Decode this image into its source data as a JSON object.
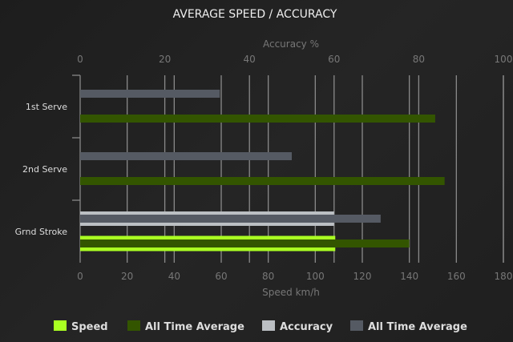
{
  "chart_data": {
    "type": "bar",
    "orientation": "horizontal",
    "title": "AVERAGE SPEED / ACCURACY",
    "categories": [
      "1st Serve",
      "2nd Serve",
      "Grnd Stroke"
    ],
    "x_axis_bottom": {
      "label": "Speed km/h",
      "range": [
        0,
        180
      ],
      "ticks": [
        0,
        20,
        40,
        60,
        80,
        100,
        120,
        140,
        160,
        180
      ]
    },
    "x_axis_top": {
      "label": "Accuracy %",
      "range": [
        0,
        100
      ],
      "ticks": [
        0,
        20,
        40,
        60,
        80,
        100
      ]
    },
    "grid": true,
    "legend_placement": "bottom",
    "series": [
      {
        "name": "Speed",
        "axis": "bottom",
        "color": "#aaff22",
        "values": [
          null,
          null,
          108.5
        ]
      },
      {
        "name": "All Time Average",
        "axis": "bottom",
        "color": "#335500",
        "values": [
          151,
          155,
          140
        ]
      },
      {
        "name": "Accuracy",
        "axis": "top",
        "color": "#bbbfc3",
        "values": [
          null,
          null,
          60
        ]
      },
      {
        "name": "All Time Average",
        "axis": "top",
        "color": "#555a63",
        "values": [
          33,
          50,
          71
        ]
      }
    ]
  }
}
